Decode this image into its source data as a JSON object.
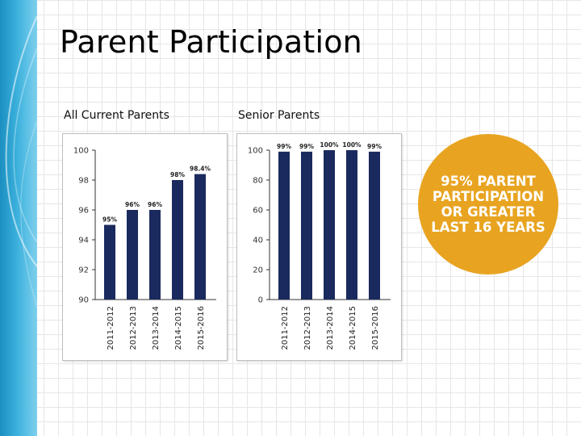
{
  "slide": {
    "title": "Parent Participation",
    "badge_text": "95% PARENT PARTICIPATION OR GREATER LAST 16 YEARS"
  },
  "colors": {
    "bar": "#1a2a5e",
    "badge": "#e8a421",
    "left_band": "#2aa3d4"
  },
  "chart_data": [
    {
      "type": "bar",
      "title": "All Current Parents",
      "categories": [
        "2011-2012",
        "2012-2013",
        "2013-2014",
        "2014-2015",
        "2015-2016"
      ],
      "values": [
        95,
        96,
        96,
        98,
        98.4
      ],
      "data_labels": [
        "95%",
        "96%",
        "96%",
        "98%",
        "98.4%"
      ],
      "ylim": [
        90,
        100
      ],
      "yticks": [
        90,
        92,
        94,
        96,
        98,
        100
      ],
      "xlabel": "",
      "ylabel": "",
      "grid": false,
      "legend": "none"
    },
    {
      "type": "bar",
      "title": "Senior Parents",
      "categories": [
        "2011-2012",
        "2012-2013",
        "2013-2014",
        "2014-2015",
        "2015-2016"
      ],
      "values": [
        99,
        99,
        100,
        100,
        99
      ],
      "data_labels": [
        "99%",
        "99%",
        "100%",
        "100%",
        "99%"
      ],
      "ylim": [
        0,
        100
      ],
      "yticks": [
        0,
        20,
        40,
        60,
        80,
        100
      ],
      "xlabel": "",
      "ylabel": "",
      "grid": false,
      "legend": "none"
    }
  ]
}
